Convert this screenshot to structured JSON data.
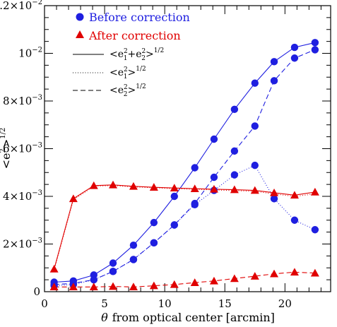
{
  "chart_data": {
    "type": "line",
    "xlabel_symbol": "θ",
    "xlabel_rest": "from optical center [arcmin]",
    "ylabel_main": "<e",
    "ylabel_sup": "2",
    "ylabel_tail": ">",
    "ylabel_exp": "1/2",
    "xlim": [
      0,
      23.8
    ],
    "ylim": [
      0,
      0.012
    ],
    "x_ticks": [
      {
        "value": 0,
        "label": "0"
      },
      {
        "value": 5,
        "label": "5"
      },
      {
        "value": 10,
        "label": "10"
      },
      {
        "value": 15,
        "label": "15"
      },
      {
        "value": 20,
        "label": "20"
      }
    ],
    "y_ticks": [
      {
        "value": 0,
        "label": "0",
        "exp": ""
      },
      {
        "value": 0.002,
        "label": "2×10",
        "exp": "−3"
      },
      {
        "value": 0.004,
        "label": "4×10",
        "exp": "−3"
      },
      {
        "value": 0.006,
        "label": "6×10",
        "exp": "−3"
      },
      {
        "value": 0.008,
        "label": "8×10",
        "exp": "−3"
      },
      {
        "value": 0.01,
        "label": "10",
        "exp": "−2"
      },
      {
        "value": 0.012,
        "label": "1.2×10",
        "exp": "−2"
      }
    ],
    "x": [
      0.8,
      2.4,
      4.1,
      5.7,
      7.4,
      9.1,
      10.8,
      12.5,
      14.1,
      15.8,
      17.5,
      19.1,
      20.8,
      22.5
    ],
    "series": [
      {
        "group": "before",
        "component": "total",
        "style": "solid",
        "marker": "circle",
        "color": "#1f1fe0",
        "values": [
          0.0004,
          0.00045,
          0.0007,
          0.0012,
          0.00195,
          0.0029,
          0.004,
          0.0052,
          0.0064,
          0.00765,
          0.00875,
          0.00965,
          0.01025,
          0.01045
        ]
      },
      {
        "group": "before",
        "component": "e1",
        "style": "dotted",
        "marker": "circle",
        "color": "#1f1fe0",
        "values": [
          0.00025,
          0.0003,
          0.0005,
          0.00085,
          0.00135,
          0.00205,
          0.0028,
          0.00365,
          0.00425,
          0.0049,
          0.0053,
          0.0039,
          0.003,
          0.0026
        ]
      },
      {
        "group": "before",
        "component": "e2",
        "style": "dashed",
        "marker": "circle",
        "color": "#1f1fe0",
        "values": [
          0.0003,
          0.00035,
          0.0005,
          0.00085,
          0.00135,
          0.00205,
          0.0028,
          0.0037,
          0.0048,
          0.0059,
          0.00695,
          0.00885,
          0.0098,
          0.01015
        ]
      },
      {
        "group": "after",
        "component": "total",
        "style": "solid",
        "marker": "triangle",
        "color": "#e00000",
        "values": [
          0.00095,
          0.0039,
          0.00445,
          0.00448,
          0.00442,
          0.00438,
          0.00435,
          0.00432,
          0.0043,
          0.00428,
          0.00425,
          0.00415,
          0.00405,
          0.00418
        ]
      },
      {
        "group": "after",
        "component": "e1",
        "style": "dotted",
        "marker": "none",
        "color": "#e00000",
        "values": [
          0.0009,
          0.00385,
          0.00443,
          0.00445,
          0.0044,
          0.00436,
          0.00432,
          0.0043,
          0.00427,
          0.00424,
          0.00421,
          0.0041,
          0.004,
          0.0041
        ]
      },
      {
        "group": "after",
        "component": "e2",
        "style": "dashed",
        "marker": "triangle",
        "color": "#e00000",
        "values": [
          0.0002,
          0.0002,
          0.0002,
          0.00022,
          0.0002,
          0.00025,
          0.0003,
          0.00038,
          0.00045,
          0.00055,
          0.00065,
          0.00075,
          0.00082,
          0.00078
        ]
      }
    ],
    "legend": {
      "placement": "top-left",
      "before_label": "Before correction",
      "after_label": "After correction",
      "line_entries": [
        {
          "style": "solid",
          "text": "<e",
          "parts": [
            "1",
            "+e",
            "2",
            ">",
            "1/2"
          ]
        },
        {
          "style": "dotted",
          "text": "<e",
          "parts": [
            "1",
            ">",
            "1/2"
          ]
        },
        {
          "style": "dashed",
          "text": "<e",
          "parts": [
            "2",
            ">",
            "1/2"
          ]
        }
      ]
    }
  }
}
